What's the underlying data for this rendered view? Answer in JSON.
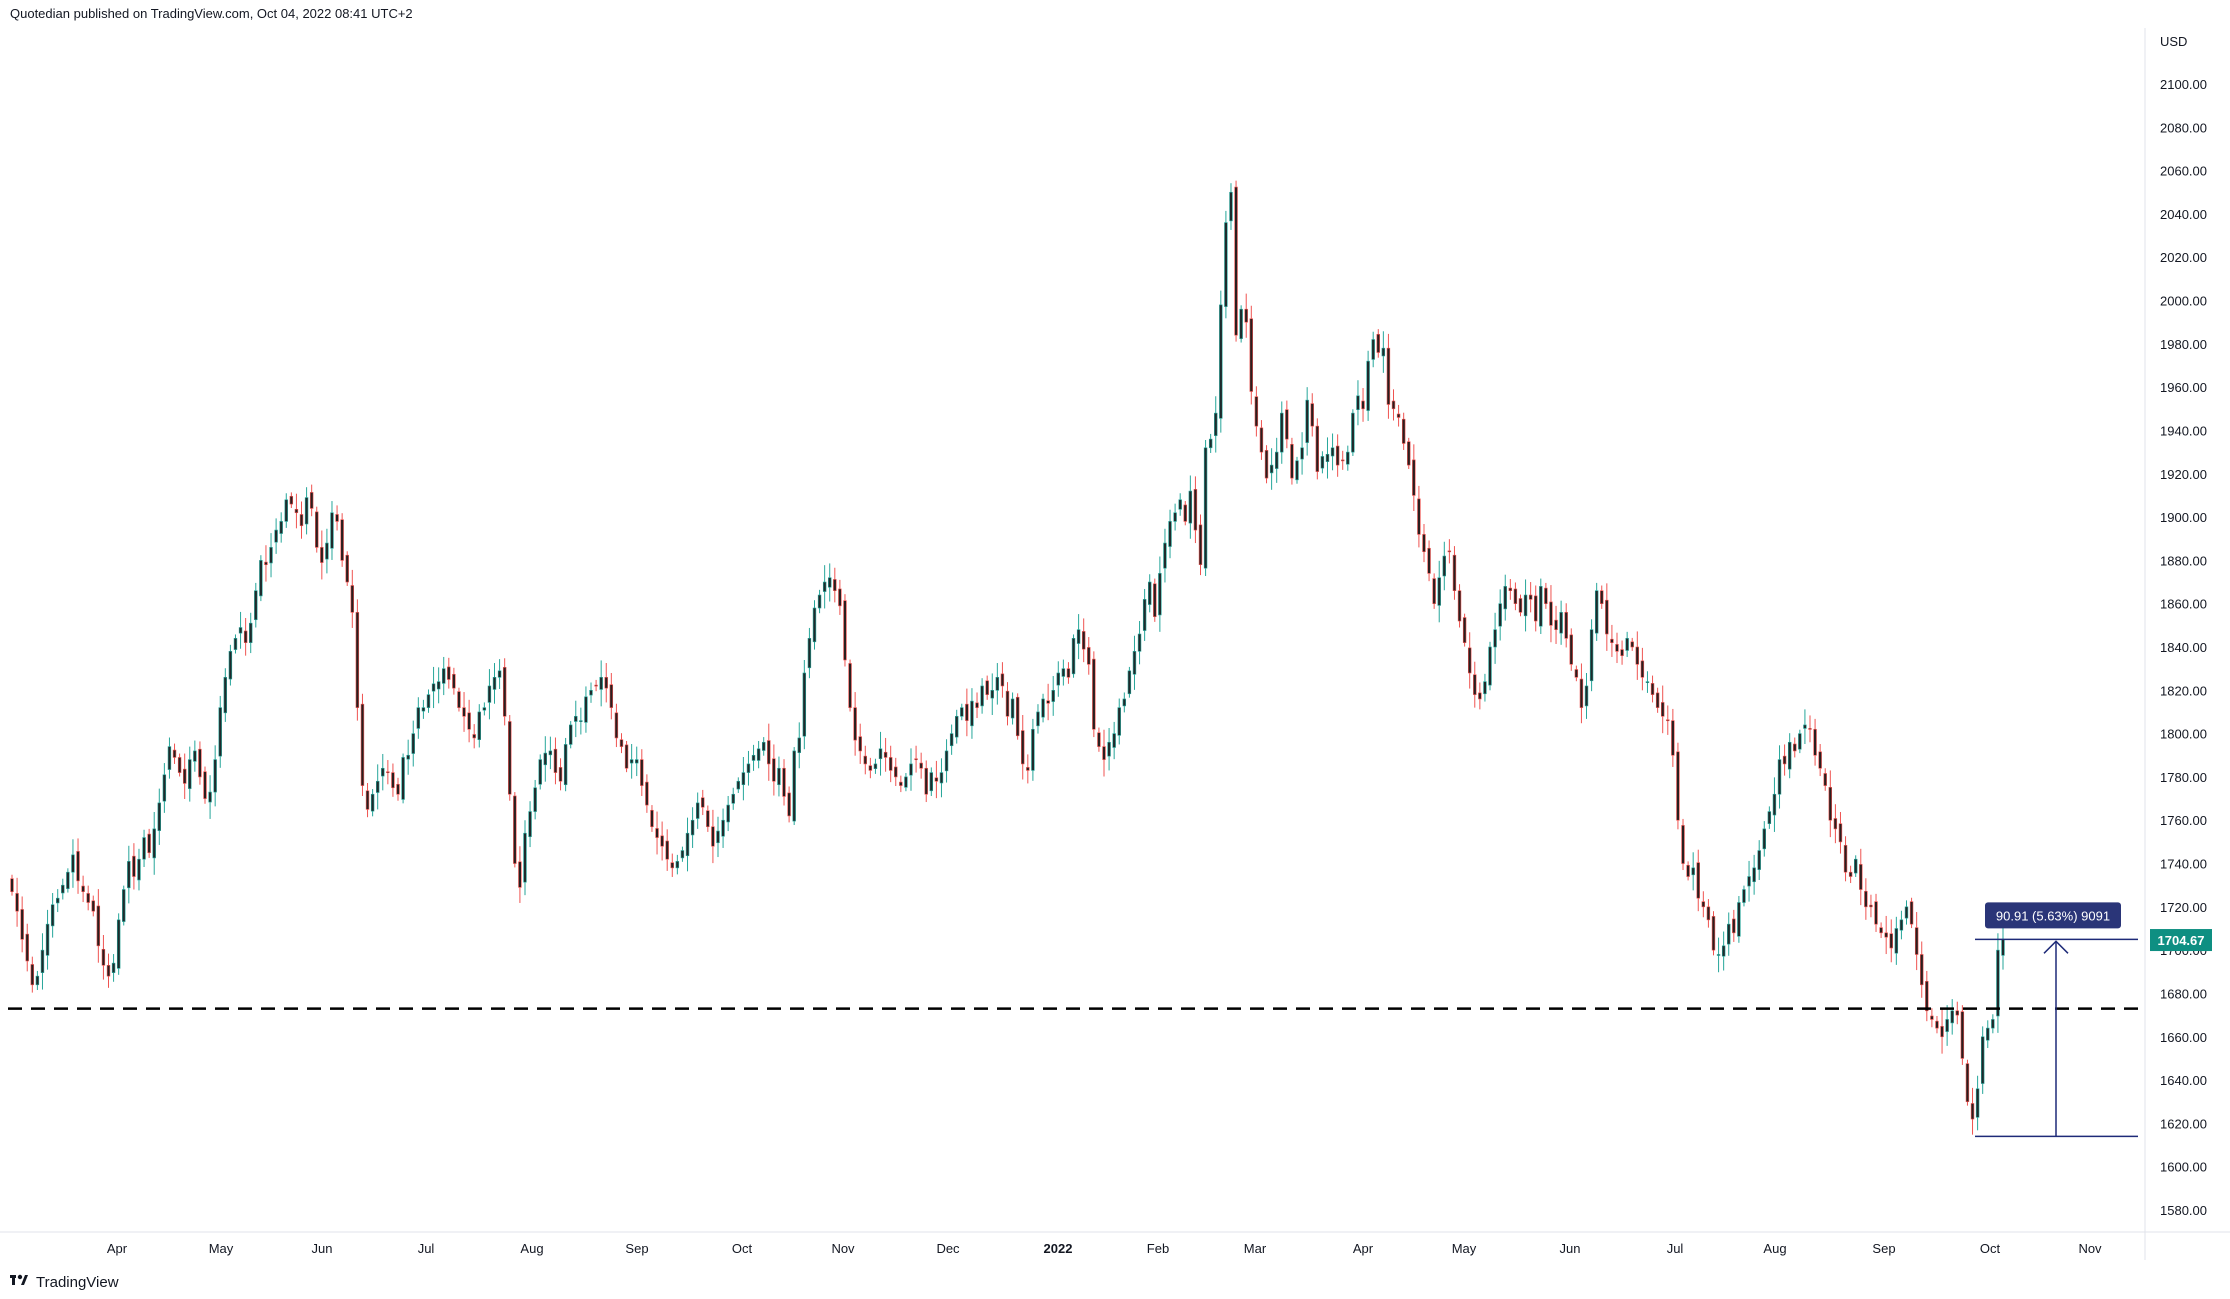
{
  "header": {
    "published_text": "Quotedian published on TradingView.com, Oct 04, 2022 08:41 UTC+2"
  },
  "footer": {
    "logo_icon": "tradingview-logo-icon",
    "brand_text": "TradingView"
  },
  "colors": {
    "up_body": "#26a69a",
    "down_body": "#ef5350",
    "candle_fill_up": "#1f2a2c",
    "candle_fill_down": "#2a1f1f",
    "axis_text": "#131722",
    "last_price_badge": "#0e8f82",
    "measure_color": "#1e2a78",
    "measure_label_bg": "#2a3578",
    "support_line": "#000000"
  },
  "chart_data": {
    "type": "candlestick",
    "title": "",
    "currency_label": "USD",
    "y_axis": {
      "min": 1570,
      "max": 2110,
      "ticks": [
        "2100.00",
        "2080.00",
        "2060.00",
        "2040.00",
        "2020.00",
        "2000.00",
        "1980.00",
        "1960.00",
        "1940.00",
        "1920.00",
        "1900.00",
        "1880.00",
        "1860.00",
        "1840.00",
        "1820.00",
        "1800.00",
        "1780.00",
        "1760.00",
        "1740.00",
        "1720.00",
        "1700.00",
        "1680.00",
        "1660.00",
        "1640.00",
        "1620.00",
        "1600.00",
        "1580.00"
      ],
      "tick_values": [
        2100,
        2080,
        2060,
        2040,
        2020,
        2000,
        1980,
        1960,
        1940,
        1920,
        1900,
        1880,
        1860,
        1840,
        1820,
        1800,
        1780,
        1760,
        1740,
        1720,
        1700,
        1680,
        1660,
        1640,
        1620,
        1600,
        1580
      ]
    },
    "x_axis": {
      "labels": [
        "Apr",
        "May",
        "Jun",
        "Jul",
        "Aug",
        "Sep",
        "Oct",
        "Nov",
        "Dec",
        "2022",
        "Feb",
        "Mar",
        "Apr",
        "May",
        "Jun",
        "Jul",
        "Aug",
        "Sep",
        "Oct",
        "Nov"
      ],
      "label_bold": [
        false,
        false,
        false,
        false,
        false,
        false,
        false,
        false,
        false,
        true,
        false,
        false,
        false,
        false,
        false,
        false,
        false,
        false,
        false,
        false
      ]
    },
    "period": {
      "start": "2021-03-12",
      "end": "2022-10-04"
    },
    "closes": [
      1727,
      1718,
      1705,
      1695,
      1684,
      1688,
      1700,
      1712,
      1721,
      1724,
      1730,
      1736,
      1744,
      1732,
      1727,
      1722,
      1718,
      1702,
      1693,
      1688,
      1694,
      1714,
      1728,
      1741,
      1734,
      1742,
      1752,
      1745,
      1756,
      1768,
      1781,
      1794,
      1789,
      1782,
      1777,
      1788,
      1792,
      1780,
      1770,
      1773,
      1788,
      1812,
      1826,
      1838,
      1844,
      1849,
      1842,
      1851,
      1866,
      1880,
      1878,
      1886,
      1894,
      1898,
      1908,
      1906,
      1902,
      1896,
      1909,
      1904,
      1886,
      1879,
      1888,
      1902,
      1898,
      1880,
      1870,
      1856,
      1812,
      1776,
      1765,
      1772,
      1778,
      1784,
      1782,
      1775,
      1772,
      1789,
      1790,
      1800,
      1812,
      1812,
      1818,
      1823,
      1824,
      1830,
      1825,
      1821,
      1812,
      1808,
      1802,
      1798,
      1810,
      1812,
      1822,
      1826,
      1829,
      1808,
      1772,
      1740,
      1729,
      1754,
      1764,
      1775,
      1788,
      1791,
      1792,
      1782,
      1778,
      1795,
      1804,
      1808,
      1806,
      1817,
      1820,
      1822,
      1826,
      1821,
      1812,
      1798,
      1794,
      1784,
      1788,
      1788,
      1776,
      1767,
      1757,
      1752,
      1748,
      1742,
      1738,
      1741,
      1746,
      1754,
      1760,
      1768,
      1766,
      1757,
      1748,
      1755,
      1760,
      1767,
      1772,
      1778,
      1782,
      1786,
      1790,
      1793,
      1796,
      1786,
      1778,
      1784,
      1771,
      1762,
      1792,
      1798,
      1828,
      1844,
      1858,
      1864,
      1870,
      1872,
      1866,
      1859,
      1834,
      1812,
      1797,
      1792,
      1786,
      1783,
      1786,
      1793,
      1789,
      1783,
      1780,
      1776,
      1780,
      1786,
      1788,
      1784,
      1772,
      1782,
      1778,
      1782,
      1792,
      1800,
      1808,
      1812,
      1806,
      1815,
      1812,
      1822,
      1818,
      1820,
      1826,
      1822,
      1808,
      1816,
      1799,
      1786,
      1783,
      1802,
      1810,
      1816,
      1814,
      1820,
      1828,
      1830,
      1826,
      1844,
      1848,
      1839,
      1832,
      1802,
      1794,
      1788,
      1796,
      1800,
      1812,
      1816,
      1829,
      1838,
      1846,
      1862,
      1870,
      1854,
      1874,
      1888,
      1898,
      1902,
      1908,
      1898,
      1912,
      1894,
      1878,
      1932,
      1936,
      1948,
      1998,
      2036,
      2050,
      1984,
      1996,
      1990,
      1958,
      1942,
      1930,
      1918,
      1924,
      1930,
      1948,
      1936,
      1918,
      1926,
      1932,
      1954,
      1942,
      1921,
      1928,
      1929,
      1932,
      1924,
      1926,
      1930,
      1948,
      1956,
      1950,
      1972,
      1982,
      1976,
      1978,
      1952,
      1950,
      1946,
      1934,
      1924,
      1910,
      1892,
      1884,
      1874,
      1860,
      1872,
      1882,
      1884,
      1866,
      1852,
      1842,
      1828,
      1818,
      1816,
      1824,
      1840,
      1848,
      1860,
      1868,
      1866,
      1860,
      1856,
      1864,
      1862,
      1852,
      1868,
      1860,
      1850,
      1848,
      1856,
      1844,
      1832,
      1826,
      1812,
      1822,
      1848,
      1866,
      1860,
      1846,
      1842,
      1838,
      1836,
      1844,
      1840,
      1832,
      1826,
      1824,
      1818,
      1812,
      1808,
      1806,
      1790,
      1760,
      1740,
      1734,
      1738,
      1724,
      1720,
      1714,
      1700,
      1698,
      1702,
      1712,
      1708,
      1722,
      1728,
      1734,
      1738,
      1746,
      1756,
      1764,
      1772,
      1788,
      1786,
      1796,
      1792,
      1800,
      1804,
      1802,
      1790,
      1784,
      1776,
      1760,
      1756,
      1750,
      1736,
      1734,
      1742,
      1728,
      1720,
      1720,
      1712,
      1708,
      1706,
      1701,
      1710,
      1714,
      1720,
      1712,
      1698,
      1684,
      1672,
      1668,
      1664,
      1660,
      1668,
      1672,
      1670,
      1650,
      1630,
      1622,
      1636,
      1660,
      1664,
      1668,
      1700,
      1705
    ],
    "annotations": {
      "support_level": 1673,
      "last_price": "1704.67",
      "last_price_value": 1704.67,
      "measure": {
        "from_value": 1614,
        "to_value": 1705,
        "label": "90.91 (5.63%) 9091"
      }
    },
    "grid": false,
    "legend": "none"
  }
}
